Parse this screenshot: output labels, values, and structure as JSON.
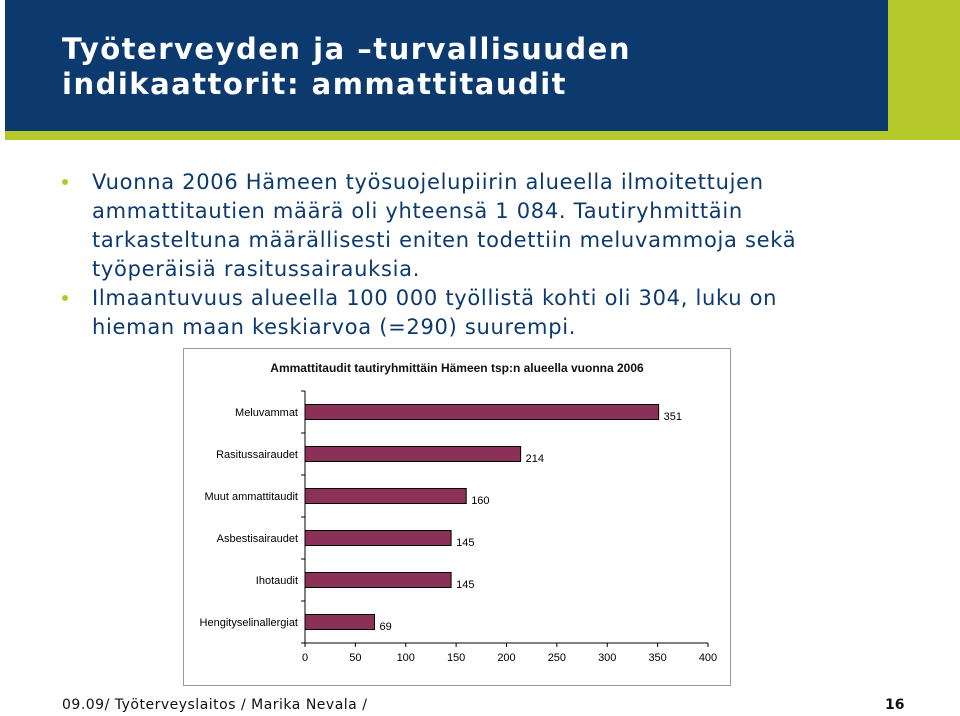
{
  "slide": {
    "title_lines": [
      "Työterveyden ja –turvallisuuden",
      "indikaattorit: ammattitaudit"
    ],
    "bullets": [
      {
        "lines": [
          "Vuonna 2006 Hämeen työsuojelupiirin alueella ilmoitettujen",
          "ammattitautien määrä oli yhteensä 1 084. Tautiryhmittäin",
          "tarkasteltuna määrällisesti eniten todettiin meluvammoja sekä",
          "työperäisiä rasitussairauksia."
        ]
      },
      {
        "lines": [
          "Ilmaantuvuus alueella 100 000 työllistä kohti oli 304, luku on",
          "hieman maan keskiarvoa (=290) suurempi."
        ]
      }
    ],
    "footer_text": "09.09/ Työterveyslaitos / Marika Nevala /",
    "page_number": "16"
  },
  "colors": {
    "header_blue": "#0d3a6e",
    "accent_green": "#b5c92a",
    "bar_fill": "#8b3057"
  },
  "chart_data": {
    "type": "bar",
    "orientation": "horizontal",
    "title": "Ammattitaudit tautiryhmittäin Hämeen tsp:n alueella vuonna 2006",
    "categories": [
      "Meluvammat",
      "Rasitussairaudet",
      "Muut ammattitaudit",
      "Asbestisairaudet",
      "Ihotaudit",
      "Hengityselinallergiat"
    ],
    "values": [
      351,
      214,
      160,
      145,
      145,
      69
    ],
    "xlim": [
      0,
      400
    ],
    "xticks": [
      0,
      50,
      100,
      150,
      200,
      250,
      300,
      350,
      400
    ],
    "xlabel": "",
    "ylabel": "",
    "grid": false,
    "legend": "none"
  }
}
